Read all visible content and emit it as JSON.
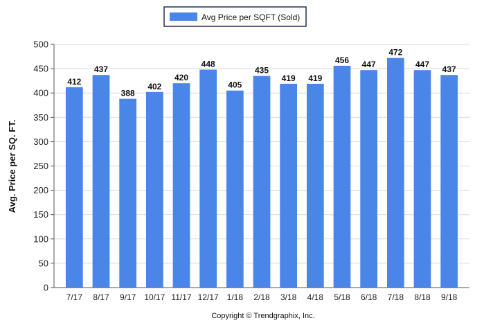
{
  "chart_data": {
    "type": "bar",
    "categories": [
      "7/17",
      "8/17",
      "9/17",
      "10/17",
      "11/17",
      "12/17",
      "1/18",
      "2/18",
      "3/18",
      "4/18",
      "5/18",
      "6/18",
      "7/18",
      "8/18",
      "9/18"
    ],
    "series": [
      {
        "name": "Avg Price per SQFT (Sold)",
        "values": [
          412,
          437,
          388,
          402,
          420,
          448,
          405,
          435,
          419,
          419,
          456,
          447,
          472,
          447,
          437
        ],
        "color": "#4A86E8"
      }
    ],
    "ylabel": "Avg. Price per SQ. FT.",
    "xlabel": "",
    "ylim": [
      0,
      500
    ],
    "yticks": [
      0,
      50,
      100,
      150,
      200,
      250,
      300,
      350,
      400,
      450,
      500
    ],
    "grid": true,
    "legend_position": "top-center"
  },
  "footer": {
    "copyright": "Copyright © Trendgraphix, Inc."
  }
}
